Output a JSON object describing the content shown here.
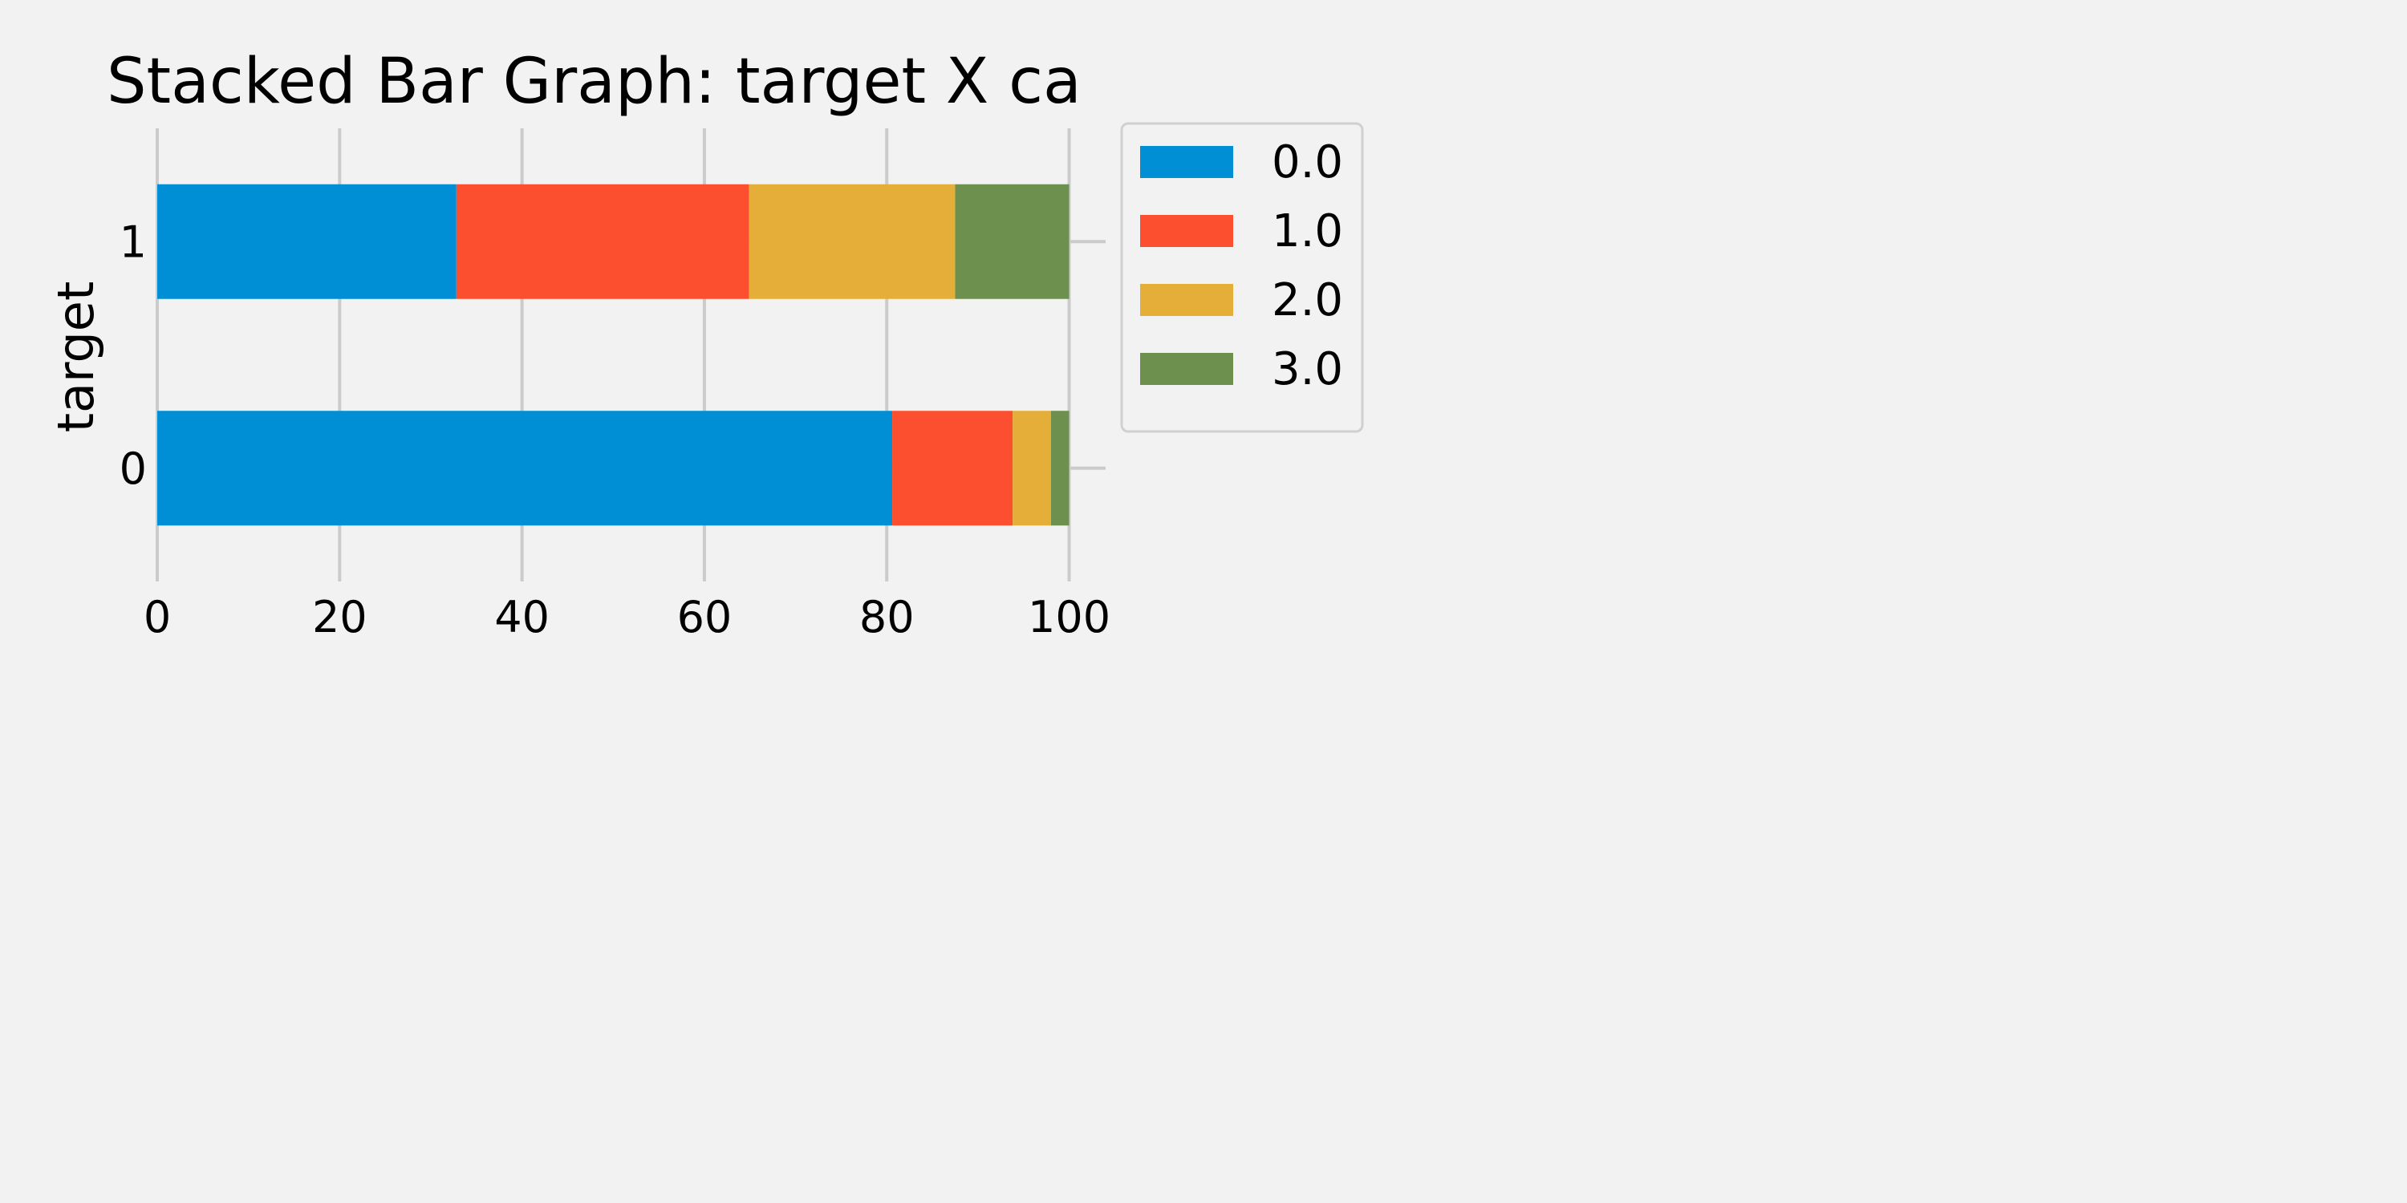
{
  "chart_data": {
    "type": "bar",
    "orientation": "horizontal",
    "stacked": true,
    "title": "Stacked Bar Graph: target X ca",
    "xlabel": "",
    "ylabel": "target",
    "categories": [
      "0",
      "1"
    ],
    "xlim": [
      0,
      104
    ],
    "xticks": [
      "0",
      "20",
      "40",
      "60",
      "80",
      "100"
    ],
    "grid": true,
    "legend_position": "outside-right-top",
    "series": [
      {
        "name": "0.0",
        "color": "#008fd5",
        "values": [
          80.6,
          32.8
        ]
      },
      {
        "name": "1.0",
        "color": "#fc4f30",
        "values": [
          13.2,
          32.1
        ]
      },
      {
        "name": "2.0",
        "color": "#e5ae38",
        "values": [
          4.2,
          22.6
        ]
      },
      {
        "name": "3.0",
        "color": "#6d904f",
        "values": [
          2.0,
          12.5
        ]
      }
    ]
  }
}
